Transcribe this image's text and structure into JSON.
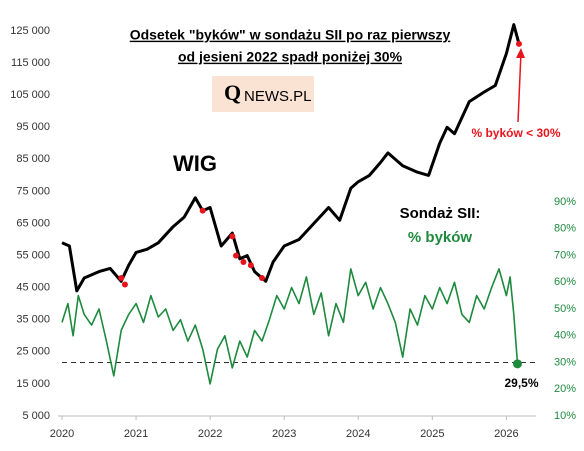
{
  "chart_data": {
    "type": "line",
    "title": [
      "Odsetek \"byków\" w sondażu SII po raz pierwszy",
      "od jesieni 2022 spadł poniżej 30%"
    ],
    "logo": [
      "Q",
      "NEWS.PL"
    ],
    "annotations": [
      "WIG",
      "Sondaż SII:",
      "% byków",
      "% byków < 30%"
    ],
    "xlim": [
      2020,
      2026.4
    ],
    "xticks": [
      2020,
      2021,
      2022,
      2023,
      2024,
      2025,
      2026
    ],
    "ylim": [
      5000,
      125000
    ],
    "yticks": [
      {
        "value": 5000,
        "label": "5 000"
      },
      {
        "value": 15000,
        "label": "15 000"
      },
      {
        "value": 25000,
        "label": "25 000"
      },
      {
        "value": 35000,
        "label": "35 000"
      },
      {
        "value": 45000,
        "label": "45 000"
      },
      {
        "value": 55000,
        "label": "55 000"
      },
      {
        "value": 65000,
        "label": "65 000"
      },
      {
        "value": 75000,
        "label": "75 000"
      },
      {
        "value": 85000,
        "label": "85 000"
      },
      {
        "value": 95000,
        "label": "95 000"
      },
      {
        "value": 105000,
        "label": "105 000"
      },
      {
        "value": 115000,
        "label": "115 000"
      },
      {
        "value": 125000,
        "label": "125 000"
      }
    ],
    "y2lim": [
      10,
      90
    ],
    "y2ticks": [
      {
        "value": 10,
        "label": "10%"
      },
      {
        "value": 20,
        "label": "20%"
      },
      {
        "value": 30,
        "label": "30%"
      },
      {
        "value": 40,
        "label": "40%"
      },
      {
        "value": 50,
        "label": "50%"
      },
      {
        "value": 60,
        "label": "60%"
      },
      {
        "value": 70,
        "label": "70%"
      },
      {
        "value": 80,
        "label": "80%"
      },
      {
        "value": 90,
        "label": "90%"
      }
    ],
    "threshold_y2": 30,
    "series": [
      {
        "name": "WIG",
        "color": "#000000",
        "x": [
          2020.0,
          2020.1,
          2020.2,
          2020.3,
          2020.5,
          2020.65,
          2020.8,
          2020.9,
          2021.0,
          2021.15,
          2021.3,
          2021.5,
          2021.65,
          2021.8,
          2021.9,
          2022.0,
          2022.15,
          2022.3,
          2022.4,
          2022.5,
          2022.6,
          2022.75,
          2022.85,
          2023.0,
          2023.2,
          2023.4,
          2023.6,
          2023.75,
          2023.9,
          2024.0,
          2024.15,
          2024.3,
          2024.4,
          2024.6,
          2024.8,
          2024.95,
          2025.1,
          2025.2,
          2025.3,
          2025.5,
          2025.7,
          2025.85,
          2026.0,
          2026.1,
          2026.17
        ],
        "values": [
          59000,
          58000,
          44000,
          48000,
          50000,
          51000,
          47000,
          52000,
          56000,
          57000,
          59000,
          64000,
          67000,
          73000,
          69000,
          70000,
          58000,
          62000,
          54000,
          55000,
          50000,
          47000,
          53000,
          58000,
          60000,
          65000,
          70000,
          66000,
          76000,
          78000,
          80000,
          84000,
          87000,
          83000,
          81000,
          80000,
          90000,
          95000,
          93000,
          103000,
          106000,
          108000,
          118000,
          127000,
          121000
        ]
      },
      {
        "name": "% byków",
        "color": "#1e8a3e",
        "axis": "y2",
        "x": [
          2020.0,
          2020.08,
          2020.15,
          2020.22,
          2020.3,
          2020.4,
          2020.5,
          2020.6,
          2020.7,
          2020.8,
          2020.9,
          2021.0,
          2021.1,
          2021.2,
          2021.3,
          2021.4,
          2021.5,
          2021.6,
          2021.7,
          2021.8,
          2021.9,
          2022.0,
          2022.1,
          2022.2,
          2022.3,
          2022.4,
          2022.5,
          2022.6,
          2022.7,
          2022.8,
          2022.9,
          2023.0,
          2023.1,
          2023.2,
          2023.3,
          2023.4,
          2023.5,
          2023.6,
          2023.7,
          2023.8,
          2023.9,
          2024.0,
          2024.1,
          2024.2,
          2024.3,
          2024.4,
          2024.5,
          2024.6,
          2024.7,
          2024.8,
          2024.9,
          2025.0,
          2025.1,
          2025.2,
          2025.3,
          2025.4,
          2025.5,
          2025.6,
          2025.7,
          2025.8,
          2025.9,
          2026.0,
          2026.05,
          2026.1,
          2026.15
        ],
        "values": [
          45,
          52,
          40,
          55,
          48,
          44,
          50,
          38,
          25,
          42,
          48,
          52,
          45,
          55,
          47,
          50,
          42,
          46,
          38,
          44,
          35,
          22,
          35,
          40,
          28,
          38,
          32,
          42,
          38,
          46,
          55,
          50,
          58,
          52,
          62,
          48,
          56,
          40,
          52,
          45,
          65,
          55,
          60,
          50,
          58,
          52,
          45,
          32,
          50,
          44,
          55,
          50,
          58,
          52,
          60,
          48,
          45,
          55,
          50,
          58,
          65,
          55,
          62,
          48,
          29.5
        ],
        "value_labels": [
          null,
          null,
          null,
          null,
          null,
          null,
          null,
          null,
          null,
          null,
          null,
          null,
          null,
          null,
          null,
          null,
          null,
          null,
          null,
          null,
          null,
          null,
          null,
          null,
          null,
          null,
          null,
          null,
          null,
          null,
          null,
          null,
          null,
          null,
          null,
          null,
          null,
          null,
          null,
          null,
          null,
          null,
          null,
          null,
          null,
          null,
          null,
          null,
          null,
          null,
          null,
          null,
          null,
          null,
          null,
          null,
          null,
          null,
          null,
          null,
          null,
          null,
          null,
          null,
          "29,5%"
        ]
      },
      {
        "color": "#e8141c",
        "style": "points",
        "x": [
          2020.8,
          2020.85,
          2021.9,
          2022.3,
          2022.35,
          2022.45,
          2022.55,
          2022.7,
          2026.17
        ],
        "values": [
          48000,
          46000,
          69000,
          61000,
          55000,
          53000,
          52000,
          48000,
          121000
        ]
      }
    ]
  }
}
